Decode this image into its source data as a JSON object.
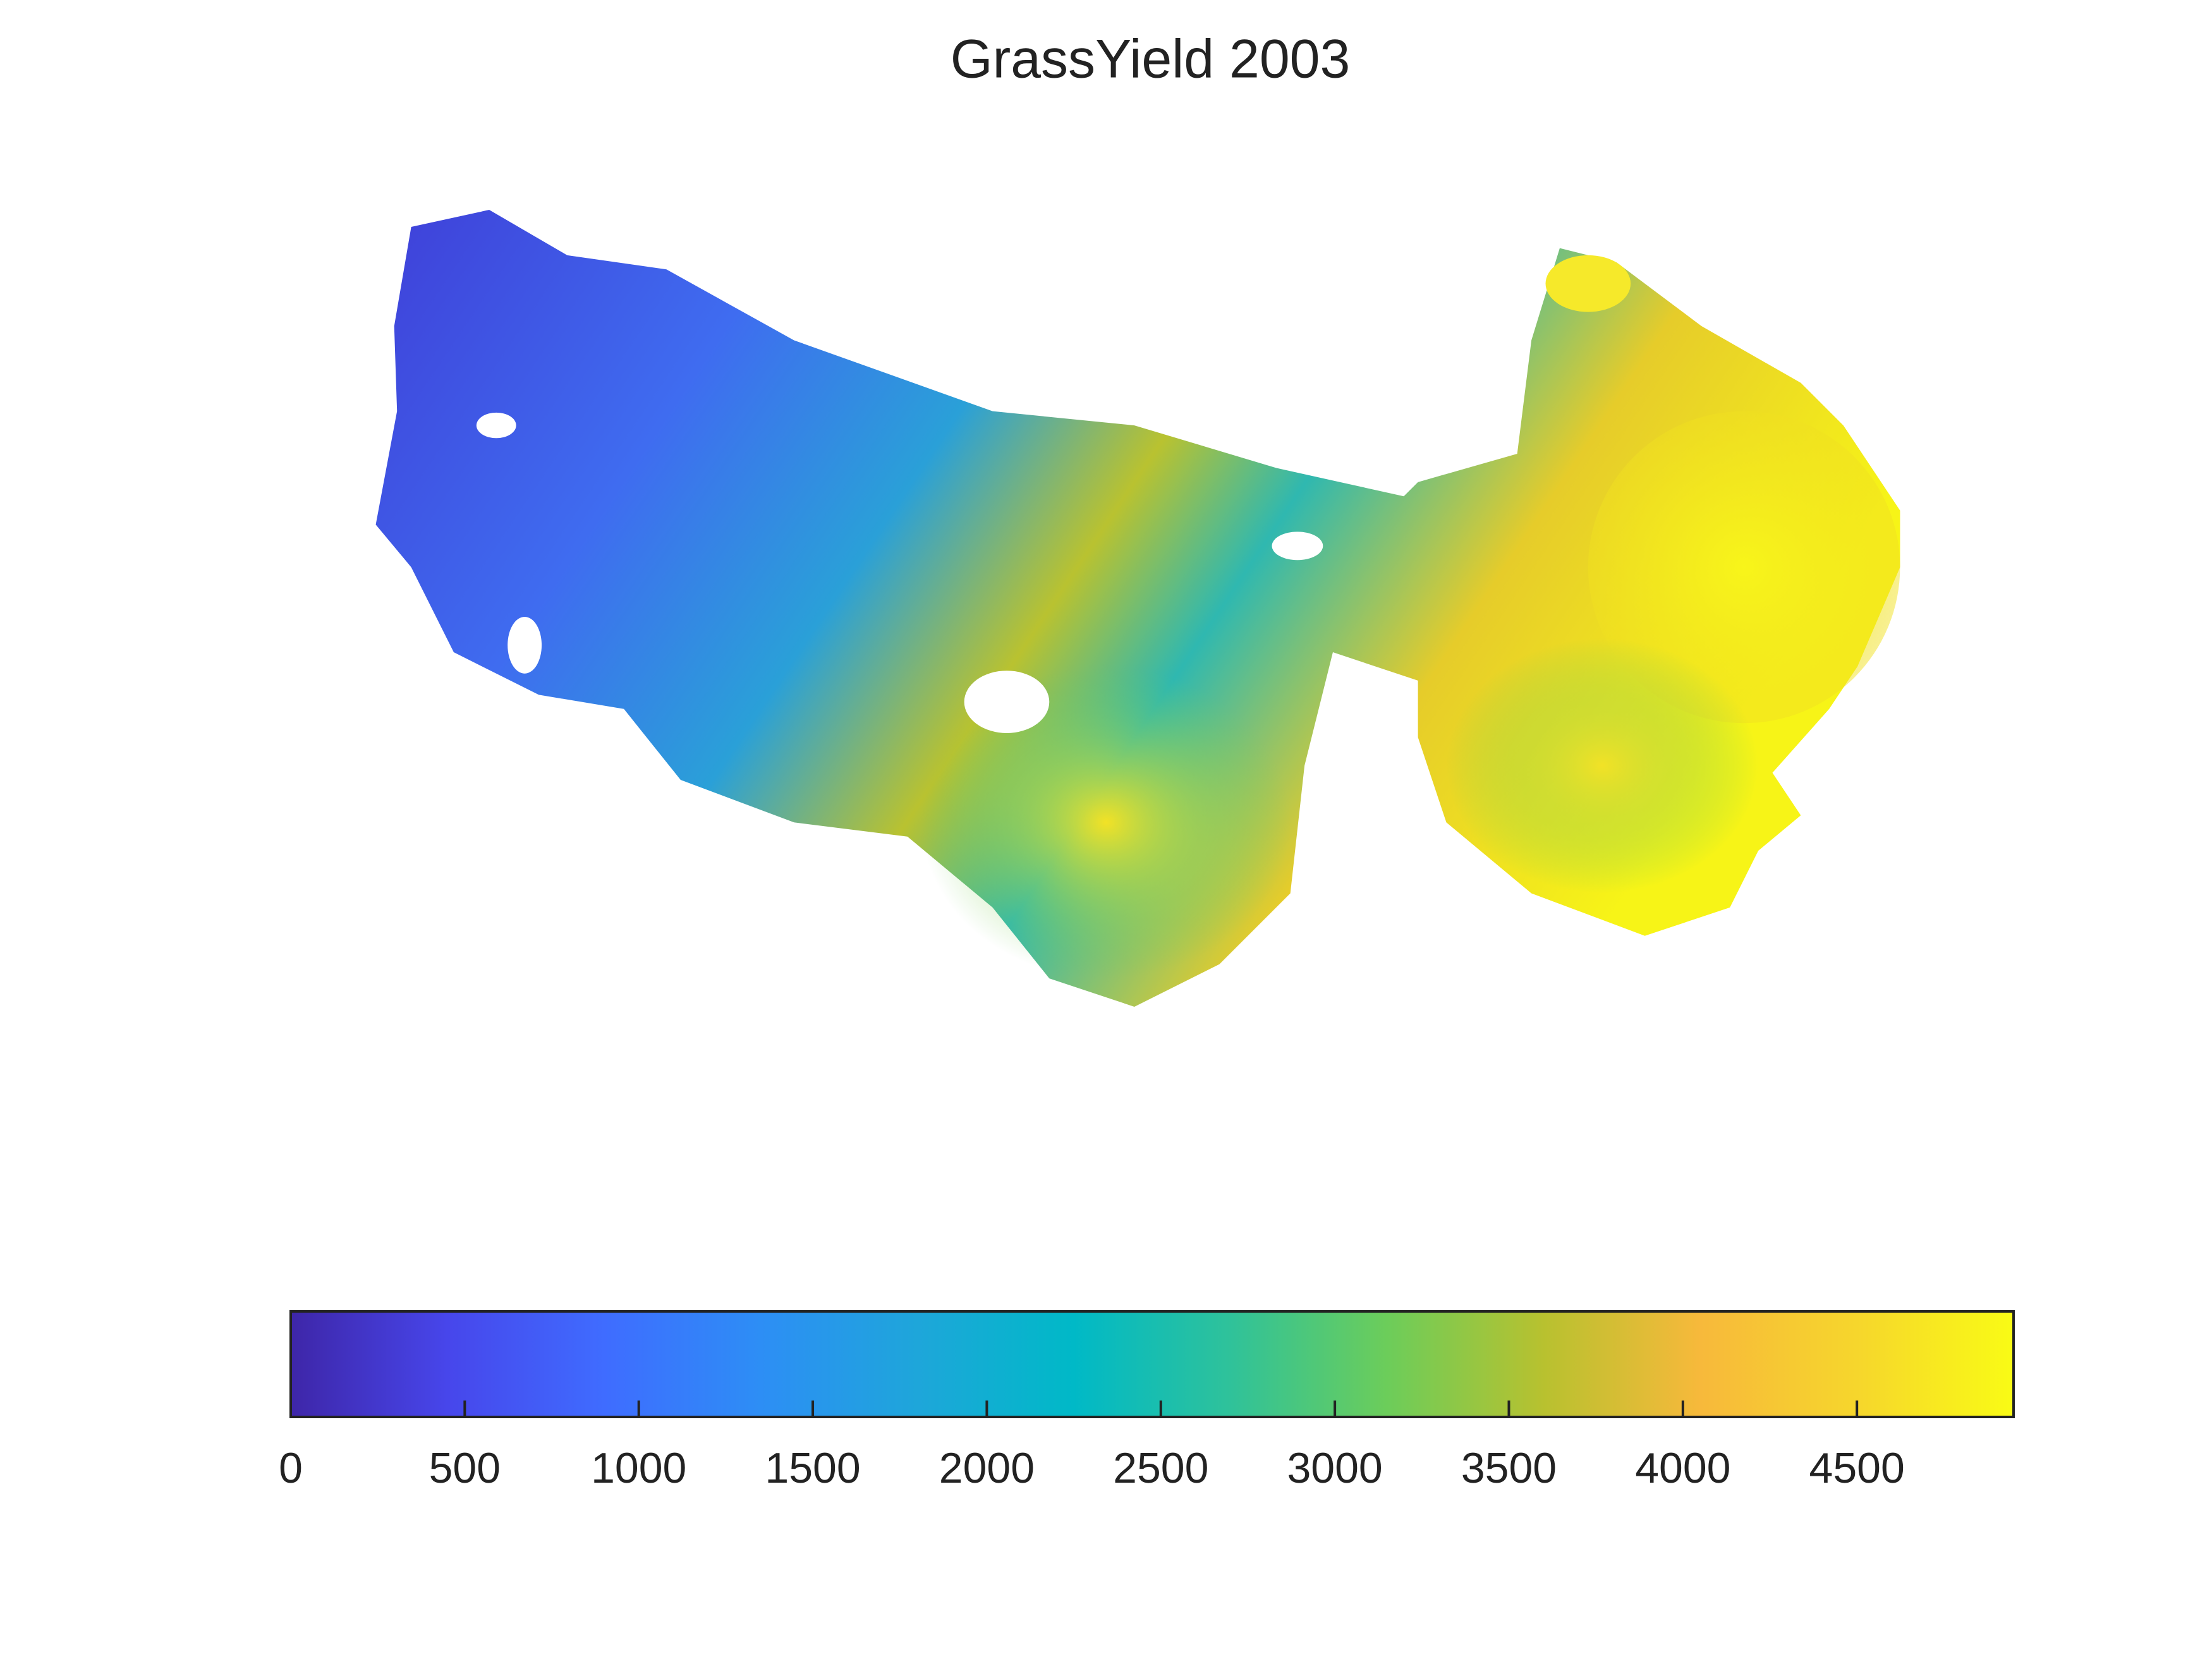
{
  "chart_data": {
    "type": "heatmap-map",
    "title": "GrassYield 2003",
    "colorbar": {
      "clim": [
        0,
        4950
      ],
      "ticks": [
        0,
        500,
        1000,
        1500,
        2000,
        2500,
        3000,
        3500,
        4000,
        4500
      ],
      "colormap": [
        "#3e26a8",
        "#4746eb",
        "#3f6cff",
        "#2d8ef5",
        "#1ea6da",
        "#00b9c7",
        "#2fc29a",
        "#6ccd5a",
        "#b8c12f",
        "#f7b93b",
        "#f6d62c",
        "#f9fb15"
      ]
    }
  }
}
